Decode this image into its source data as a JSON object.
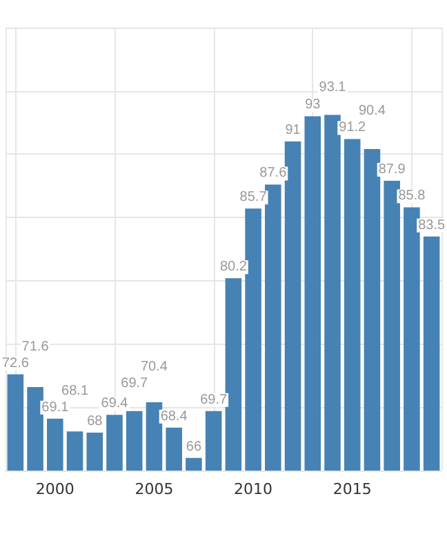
{
  "chart_data": {
    "type": "bar",
    "categories": [
      null,
      null,
      "2000",
      null,
      null,
      null,
      null,
      "2005",
      null,
      null,
      null,
      null,
      "2010",
      null,
      null,
      null,
      null,
      "2015",
      null,
      null,
      null,
      null
    ],
    "values": [
      72.6,
      71.6,
      69.1,
      68.1,
      68,
      69.4,
      69.7,
      70.4,
      68.4,
      66,
      69.7,
      80.2,
      85.7,
      87.6,
      91,
      93,
      93.1,
      91.2,
      90.4,
      87.9,
      85.8,
      83.5
    ],
    "color": "#4682b4",
    "data_labels": true,
    "ylim": [
      65,
      100
    ],
    "yticks": [
      {
        "value": 65,
        "label": null
      },
      {
        "value": 70,
        "label": null
      },
      {
        "value": 75,
        "label": null
      },
      {
        "value": 80,
        "label": null
      },
      {
        "value": 85,
        "label": null
      },
      {
        "value": 90,
        "label": null
      },
      {
        "value": 95,
        "label": null
      },
      {
        "value": 100,
        "label": null
      }
    ],
    "tick_labels": "x",
    "grid": true
  }
}
